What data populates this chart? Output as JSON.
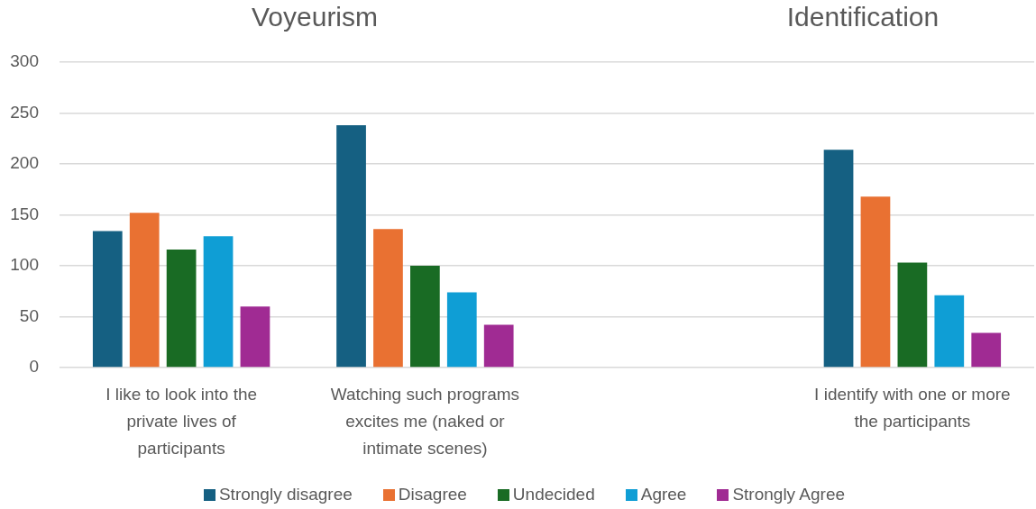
{
  "chart_data": {
    "type": "bar",
    "annotations": [
      "Voyeurism",
      "Identification"
    ],
    "categories": [
      "I like to look into the private lives of participants",
      "Watching such programs excites me (naked or intimate scenes)",
      null,
      "I identify with one or more the participants"
    ],
    "series": [
      {
        "name": "Strongly disagree",
        "color": "#156082",
        "values": [
          134,
          238,
          null,
          214
        ]
      },
      {
        "name": "Disagree",
        "color": "#e97132",
        "values": [
          152,
          136,
          null,
          168
        ]
      },
      {
        "name": "Undecided",
        "color": "#196b24",
        "values": [
          116,
          100,
          null,
          103
        ]
      },
      {
        "name": "Agree",
        "color": "#0f9ed5",
        "values": [
          129,
          74,
          null,
          71
        ]
      },
      {
        "name": "Strongly Agree",
        "color": "#a02b93",
        "values": [
          60,
          42,
          null,
          34
        ]
      }
    ],
    "ylim": [
      0,
      300
    ],
    "yticks": [
      0,
      50,
      100,
      150,
      200,
      250,
      300
    ],
    "grid": "y",
    "legend": "bottom"
  }
}
